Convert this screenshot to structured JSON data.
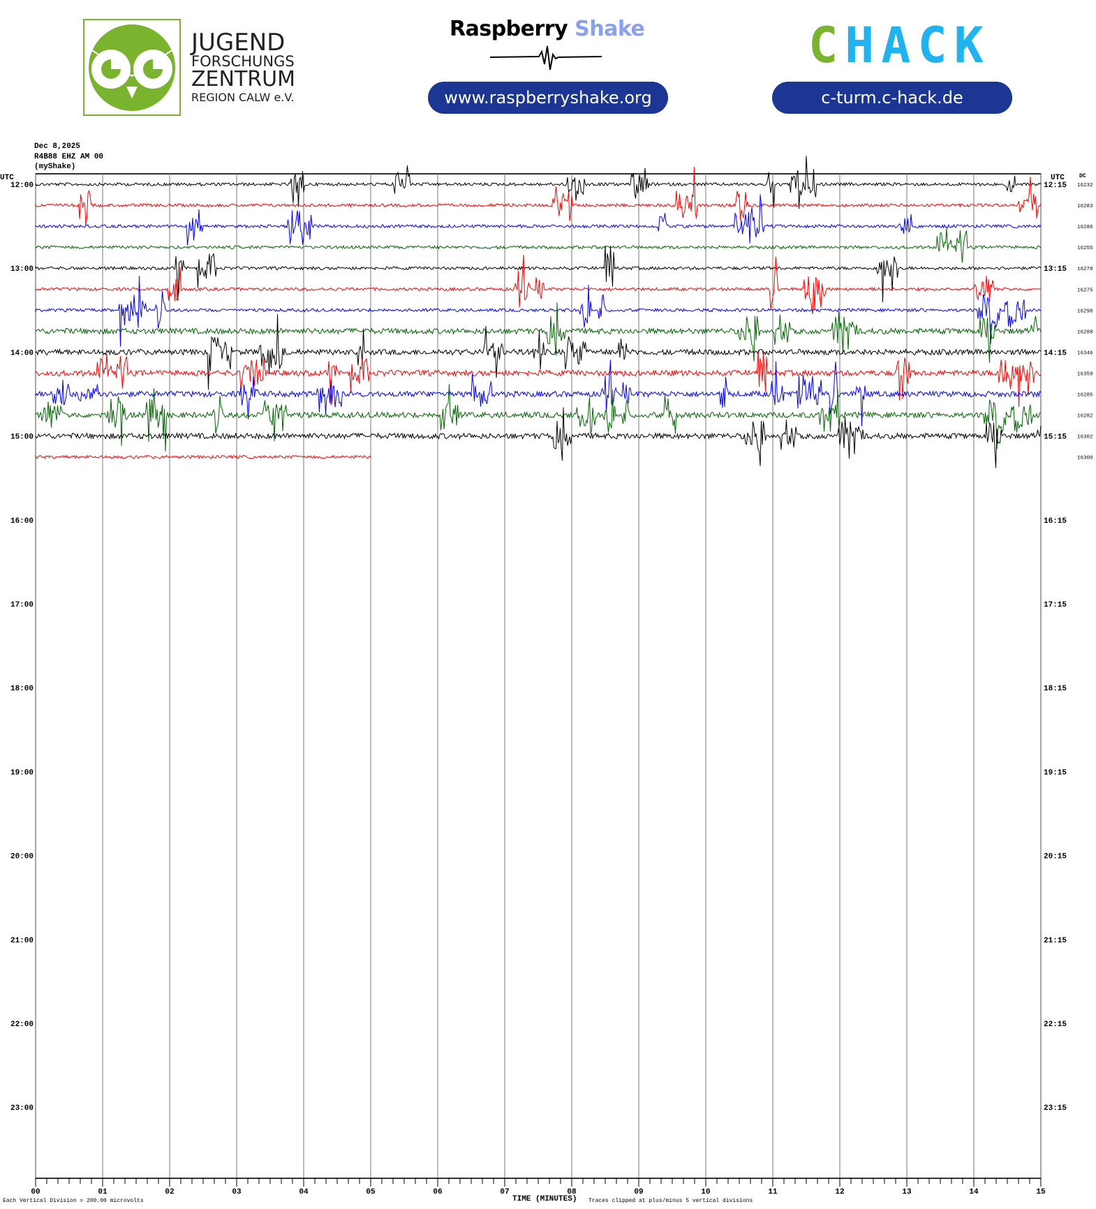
{
  "header": {
    "jfz_logo": {
      "lines": [
        "JUGEND",
        "FORSCHUNGS",
        "ZENTRUM",
        "REGION CALW e.V."
      ]
    },
    "raspberry_shake": {
      "title_part1": "Raspberry",
      "title_part2": "Shake",
      "url": "www.raspberryshake.org"
    },
    "chack": {
      "logo_c": "C",
      "logo_rest": "HACK",
      "url": "c-turm.c-hack.de"
    },
    "colors": {
      "green": "#7ab32e",
      "blue_pill": "#1c3693",
      "shake_blue": "#8aa0f0",
      "chack_blue": "#1fb3f0"
    }
  },
  "plot_info": {
    "date": "Dec 8,2025",
    "station": "R4B88 EHZ AM 00",
    "network": "(myShake)",
    "left_axis_title": "UTC",
    "right_axis_title": "UTC",
    "dc_title": "DC"
  },
  "chart_data": {
    "type": "helicorder",
    "left_hour_labels": [
      "12:00",
      "13:00",
      "14:00",
      "15:00",
      "16:00",
      "17:00",
      "18:00",
      "19:00",
      "20:00",
      "21:00",
      "22:00",
      "23:00"
    ],
    "right_hour_labels": [
      "12:15",
      "13:15",
      "14:15",
      "15:15",
      "16:15",
      "17:15",
      "18:15",
      "19:15",
      "20:15",
      "21:15",
      "22:15",
      "23:15"
    ],
    "x_tick_labels": [
      "00",
      "01",
      "02",
      "03",
      "04",
      "05",
      "06",
      "07",
      "08",
      "09",
      "10",
      "11",
      "12",
      "13",
      "14",
      "15"
    ],
    "xlabel": "TIME (MINUTES)",
    "xlim_minutes": [
      0,
      15
    ],
    "rows_per_hour": 4,
    "color_cycle": [
      "#000000",
      "#ff0000",
      "#0000ff",
      "#006400"
    ],
    "traces": [
      {
        "dc": "16232",
        "end_minute": 15
      },
      {
        "dc": "16283",
        "end_minute": 15
      },
      {
        "dc": "16286",
        "end_minute": 15
      },
      {
        "dc": "16255",
        "end_minute": 15
      },
      {
        "dc": "16278",
        "end_minute": 15
      },
      {
        "dc": "16275",
        "end_minute": 15
      },
      {
        "dc": "16298",
        "end_minute": 15
      },
      {
        "dc": "16288",
        "end_minute": 15
      },
      {
        "dc": "16346",
        "end_minute": 15
      },
      {
        "dc": "16359",
        "end_minute": 15
      },
      {
        "dc": "16285",
        "end_minute": 15
      },
      {
        "dc": "16282",
        "end_minute": 15
      },
      {
        "dc": "16302",
        "end_minute": 15
      },
      {
        "dc": "16300",
        "end_minute": 5
      }
    ],
    "scale_note": "Each Vertical Division =  200.00 microvolts",
    "clip_note": "Traces clipped at plus/minus 5 vertical divisions"
  }
}
